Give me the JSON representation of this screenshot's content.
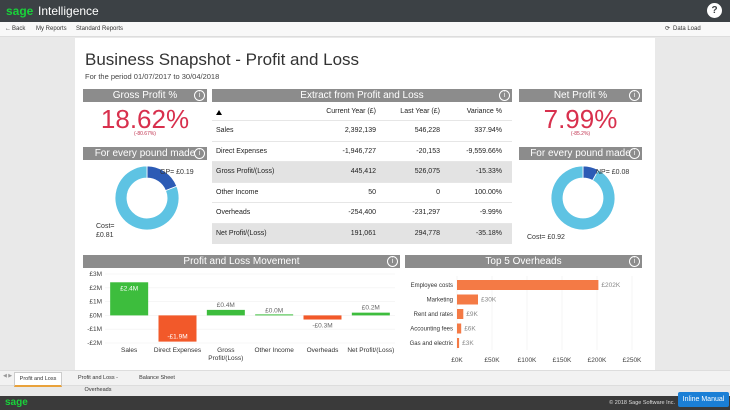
{
  "app": {
    "brand": "sage",
    "product": "Intelligence",
    "help": "?"
  },
  "nav": {
    "back": "Back",
    "items": [
      "My Reports",
      "Standard Reports"
    ],
    "action": "Data Load"
  },
  "report": {
    "title": "Business Snapshot - Profit and Loss",
    "subtitle": "For the period 01/07/2017 to 30/04/2018"
  },
  "kpis": [
    {
      "title": "Gross Profit %",
      "value": "18.62%",
      "change": "(-80.67%)"
    },
    {
      "title": "Net Profit %",
      "value": "7.99%",
      "change": "(-85.2%)"
    }
  ],
  "table": {
    "title": "Extract from Profit and Loss",
    "columns": [
      "Current Year (£)",
      "Last Year (£)",
      "Variance %"
    ],
    "rows": [
      {
        "cells": [
          "Sales",
          "2,392,139",
          "546,228",
          "337.94%"
        ],
        "shaded": false
      },
      {
        "cells": [
          "Direct Expenses",
          "-1,946,727",
          "-20,153",
          "-9,559.66%"
        ],
        "shaded": false
      },
      {
        "cells": [
          "Gross Profit/(Loss)",
          "445,412",
          "526,075",
          "-15.33%"
        ],
        "shaded": true
      },
      {
        "cells": [
          "Other Income",
          "50",
          "0",
          "100.00%"
        ],
        "shaded": false
      },
      {
        "cells": [
          "Overheads",
          "-254,400",
          "-231,297",
          "-9.99%"
        ],
        "shaded": false
      },
      {
        "cells": [
          "Net Profit/(Loss)",
          "191,061",
          "294,778",
          "-35.18%"
        ],
        "shaded": true
      }
    ]
  },
  "chart_data": [
    {
      "type": "bar",
      "title": "Profit and Loss Movement",
      "categories": [
        "Sales",
        "Direct Expenses",
        "Gross Profit/(Loss)",
        "Other Income",
        "Overheads",
        "Net Profit/(Loss)"
      ],
      "values": [
        2.4,
        -1.9,
        0.4,
        0.0,
        -0.3,
        0.2
      ],
      "value_labels": [
        "£2.4M",
        "-£1.9M",
        "£0.4M",
        "£0.0M",
        "-£0.3M",
        "£0.2M"
      ],
      "positive_color": "#3dbd3d",
      "negative_color": "#f2592a",
      "ylim": [
        -2,
        3
      ],
      "yticks": [
        {
          "value": 3,
          "label": "£3M"
        },
        {
          "value": 2,
          "label": "£2M"
        },
        {
          "value": 1,
          "label": "£1M"
        },
        {
          "value": 0,
          "label": "£0M"
        },
        {
          "value": -1,
          "label": "-£1M"
        },
        {
          "value": -2,
          "label": "-£2M"
        }
      ],
      "grid": true
    },
    {
      "type": "hbar",
      "title": "Top 5 Overheads",
      "categories": [
        "Employee costs",
        "Marketing",
        "Rent and rates",
        "Accounting fees",
        "Gas and electric"
      ],
      "values": [
        202,
        30,
        9,
        6,
        3
      ],
      "value_labels": [
        "£202K",
        "£30K",
        "£9K",
        "£6K",
        "£3K"
      ],
      "color": "#f47a45",
      "xlim": [
        0,
        250
      ],
      "xticks": [
        {
          "value": 0,
          "label": "£0K"
        },
        {
          "value": 50,
          "label": "£50K"
        },
        {
          "value": 100,
          "label": "£100K"
        },
        {
          "value": 150,
          "label": "£150K"
        },
        {
          "value": 200,
          "label": "£200K"
        },
        {
          "value": 250,
          "label": "£250K"
        }
      ],
      "grid": true
    },
    {
      "type": "donut",
      "title": "For every pound made",
      "categories": [
        "GP=",
        "Cost="
      ],
      "values": [
        0.19,
        0.81
      ],
      "value_labels": [
        "£0.19",
        "£0.81"
      ],
      "colors": [
        "#2c5bb5",
        "#5ec3e3"
      ]
    },
    {
      "type": "donut",
      "title": "For every pound made",
      "categories": [
        "NP=",
        "Cost="
      ],
      "values": [
        0.08,
        0.92
      ],
      "value_labels": [
        "£0.08",
        "£0.92"
      ],
      "colors": [
        "#2c5bb5",
        "#5ec3e3"
      ]
    }
  ],
  "tabs": [
    "Profit and Loss",
    "Profit and Loss - Overheads",
    "Balance Sheet"
  ],
  "footer": {
    "brand": "sage",
    "copyright": "© 2018 Sage Software Inc.",
    "help_button": "Inline Manual"
  }
}
